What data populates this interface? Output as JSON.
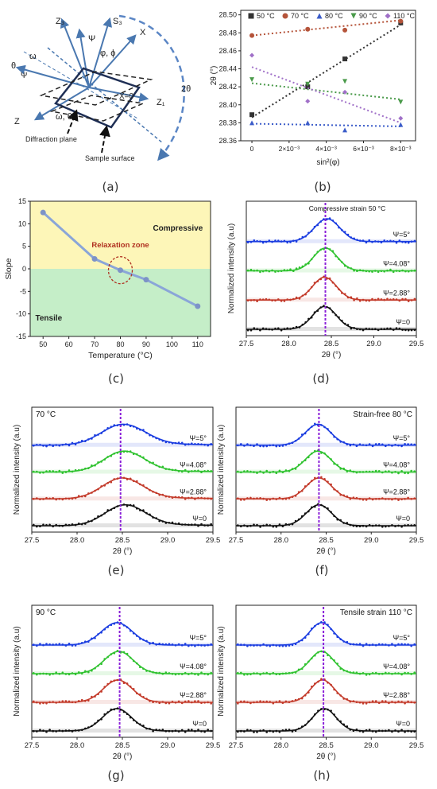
{
  "captions": {
    "a": "(a)",
    "b": "(b)",
    "c": "(c)",
    "d": "(d)",
    "e": "(e)",
    "f": "(f)",
    "g": "(g)",
    "h": "(h)"
  },
  "schematic": {
    "labels": [
      "Z₃",
      "S₃",
      "X",
      "Ψ",
      "φ, ϕ",
      "θ",
      "ω",
      "X=0",
      "Z₁",
      "Z",
      "ω, θ",
      "2θ",
      "Diffraction plane",
      "Sample surface"
    ],
    "colors": {
      "axis": "#4a78b0",
      "frame": "#1f2f55",
      "dash": "#5b86c5"
    }
  },
  "chart_data": [
    {
      "id": "b",
      "type": "scatter",
      "xlabel": "sin²(φ)",
      "ylabel": "2θ (°)",
      "x_ticks": [
        "0",
        "2×10⁻³",
        "4×10⁻³",
        "6×10⁻³",
        "8×10⁻³"
      ],
      "xlim": [
        -0.0006,
        0.0088
      ],
      "ylim": [
        28.36,
        28.505
      ],
      "y_ticks": [
        28.36,
        28.38,
        28.4,
        28.42,
        28.44,
        28.46,
        28.48,
        28.5
      ],
      "legend": "top",
      "series": [
        {
          "name": "50 °C",
          "color": "#333333",
          "marker": "square",
          "x": [
            0,
            0.003,
            0.005,
            0.008
          ],
          "y": [
            28.389,
            28.42,
            28.451,
            28.491
          ],
          "fit": [
            28.386,
            28.489
          ]
        },
        {
          "name": "70 °C",
          "color": "#b5543a",
          "marker": "circle",
          "x": [
            0,
            0.003,
            0.005,
            0.008
          ],
          "y": [
            28.477,
            28.484,
            28.483,
            28.493
          ],
          "fit": [
            28.477,
            28.494
          ]
        },
        {
          "name": "80 °C",
          "color": "#3b5cc9",
          "marker": "triangle-up",
          "x": [
            0,
            0.003,
            0.005,
            0.008
          ],
          "y": [
            28.38,
            28.38,
            28.372,
            28.378
          ],
          "fit": [
            28.379,
            28.376
          ]
        },
        {
          "name": "90 °C",
          "color": "#4a9a4a",
          "marker": "triangle-down",
          "x": [
            0,
            0.003,
            0.005,
            0.008
          ],
          "y": [
            28.428,
            28.423,
            28.426,
            28.403
          ],
          "fit": [
            28.424,
            28.406
          ]
        },
        {
          "name": "110 °C",
          "color": "#a070c8",
          "marker": "diamond",
          "x": [
            0,
            0.003,
            0.005,
            0.008
          ],
          "y": [
            28.455,
            28.404,
            28.414,
            28.385
          ],
          "fit": [
            28.442,
            28.38
          ]
        }
      ]
    },
    {
      "id": "c",
      "type": "line",
      "xlabel": "Temperature (°C)",
      "ylabel": "Slope",
      "x_ticks": [
        50,
        60,
        70,
        80,
        90,
        100,
        110
      ],
      "y_ticks": [
        -15,
        -10,
        -5,
        0,
        5,
        10,
        15
      ],
      "xlim": [
        45,
        115
      ],
      "ylim": [
        -15,
        15
      ],
      "x": [
        50,
        70,
        80,
        90,
        110
      ],
      "y": [
        12.5,
        2.2,
        -0.3,
        -2.4,
        -8.3
      ],
      "regions": {
        "compressive": "Compressive",
        "tensile": "Tensile",
        "relaxation": "Relaxation zone"
      },
      "colors": {
        "top": "#fdf6b8",
        "bottom": "#c5eec8",
        "line": "#8aa5d8",
        "marker": "#7d93c7"
      }
    },
    {
      "id": "d",
      "type": "line",
      "title": "Compressive strain  50 °C",
      "title_align": "center",
      "xlabel": "2θ (°)",
      "ylabel": "Normalized intensity (a.u)",
      "x_ticks": [
        27.5,
        28.0,
        28.5,
        29.0,
        29.5
      ],
      "xlim": [
        27.5,
        29.5
      ],
      "ref_line": 28.43,
      "series": [
        {
          "name": "Ψ=0",
          "color": "#111111",
          "center": 28.42,
          "width": 0.14,
          "tail": 0.0
        },
        {
          "name": "Ψ=2.88°",
          "color": "#c33a2a",
          "center": 28.42,
          "width": 0.14,
          "tail": 0.0
        },
        {
          "name": "Ψ=4.08°",
          "color": "#2fc22f",
          "center": 28.43,
          "width": 0.14,
          "tail": 0.0
        },
        {
          "name": "Ψ=5°",
          "color": "#1a3ce0",
          "center": 28.45,
          "width": 0.15,
          "tail": 0.0
        }
      ]
    },
    {
      "id": "e",
      "type": "line",
      "title": "70 °C",
      "title_align": "left",
      "xlabel": "2θ (°)",
      "ylabel": "Normalized intensity (a.u)",
      "x_ticks": [
        27.5,
        28.0,
        28.5,
        29.0,
        29.5
      ],
      "xlim": [
        27.5,
        29.5
      ],
      "ref_line": 28.48,
      "series": [
        {
          "name": "Ψ=0",
          "color": "#111111",
          "center": 28.53,
          "width": 0.22,
          "tail": 0.12
        },
        {
          "name": "Ψ=2.88°",
          "color": "#c33a2a",
          "center": 28.5,
          "width": 0.22,
          "tail": 0.12
        },
        {
          "name": "Ψ=4.08°",
          "color": "#2fc22f",
          "center": 28.52,
          "width": 0.22,
          "tail": 0.12
        },
        {
          "name": "Ψ=5°",
          "color": "#1a3ce0",
          "center": 28.51,
          "width": 0.24,
          "tail": 0.12
        }
      ]
    },
    {
      "id": "f",
      "type": "line",
      "title": "Strain-free 80 °C",
      "title_align": "right",
      "xlabel": "2θ (°)",
      "ylabel": "Normalized intensity (a.u)",
      "x_ticks": [
        27.5,
        28.0,
        28.5,
        29.0,
        29.5
      ],
      "xlim": [
        27.5,
        29.5
      ],
      "ref_line": 28.42,
      "series": [
        {
          "name": "Ψ=0",
          "color": "#111111",
          "center": 28.42,
          "width": 0.14,
          "tail": 0.0
        },
        {
          "name": "Ψ=2.88°",
          "color": "#c33a2a",
          "center": 28.42,
          "width": 0.14,
          "tail": 0.0
        },
        {
          "name": "Ψ=4.08°",
          "color": "#2fc22f",
          "center": 28.41,
          "width": 0.14,
          "tail": 0.0
        },
        {
          "name": "Ψ=5°",
          "color": "#1a3ce0",
          "center": 28.41,
          "width": 0.14,
          "tail": 0.0
        }
      ]
    },
    {
      "id": "g",
      "type": "line",
      "title": "90 °C",
      "title_align": "left",
      "xlabel": "2θ (°)",
      "ylabel": "Normalized intensity (a.u)",
      "x_ticks": [
        27.5,
        28.0,
        28.5,
        29.0,
        29.5
      ],
      "xlim": [
        27.5,
        29.5
      ],
      "ref_line": 28.47,
      "series": [
        {
          "name": "Ψ=0",
          "color": "#111111",
          "center": 28.44,
          "width": 0.16,
          "tail": 0.0
        },
        {
          "name": "Ψ=2.88°",
          "color": "#c33a2a",
          "center": 28.45,
          "width": 0.16,
          "tail": 0.0
        },
        {
          "name": "Ψ=4.08°",
          "color": "#2fc22f",
          "center": 28.46,
          "width": 0.16,
          "tail": 0.0
        },
        {
          "name": "Ψ=5°",
          "color": "#1a3ce0",
          "center": 28.44,
          "width": 0.17,
          "tail": 0.0
        }
      ]
    },
    {
      "id": "h",
      "type": "line",
      "title": "Tensile strain 110 °C",
      "title_align": "right",
      "xlabel": "2θ (°)",
      "ylabel": "Normalized intensity (a.u)",
      "x_ticks": [
        27.5,
        28.0,
        28.5,
        29.0,
        29.5
      ],
      "xlim": [
        27.5,
        29.5
      ],
      "ref_line": 28.47,
      "series": [
        {
          "name": "Ψ=0",
          "color": "#111111",
          "center": 28.48,
          "width": 0.13,
          "tail": 0.0
        },
        {
          "name": "Ψ=2.88°",
          "color": "#c33a2a",
          "center": 28.46,
          "width": 0.13,
          "tail": 0.0
        },
        {
          "name": "Ψ=4.08°",
          "color": "#2fc22f",
          "center": 28.45,
          "width": 0.13,
          "tail": 0.0
        },
        {
          "name": "Ψ=5°",
          "color": "#1a3ce0",
          "center": 28.45,
          "width": 0.13,
          "tail": 0.0
        }
      ]
    }
  ]
}
